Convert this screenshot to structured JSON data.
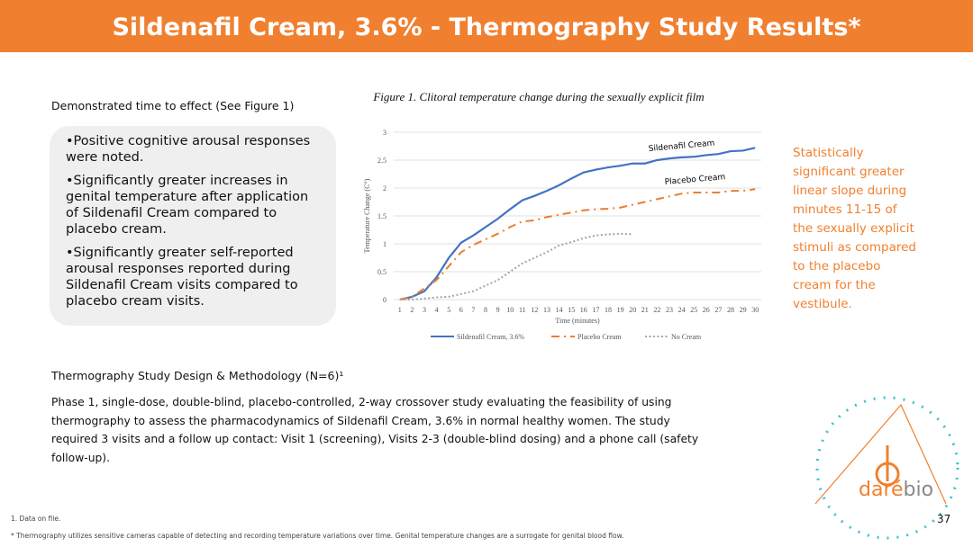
{
  "header": {
    "title": "Sildenafil Cream, 3.6% - Thermography Study Results*"
  },
  "left": {
    "intro": "Demonstrated time to effect (See Figure 1)",
    "bullets": [
      "•Positive cognitive arousal responses were noted.",
      "•Significantly greater increases in genital temperature after application of Sildenafil Cream compared to placebo cream.",
      "•Significantly greater self-reported arousal responses reported during Sildenafil Cream visits compared to placebo cream visits."
    ]
  },
  "chart_data": {
    "type": "line",
    "title": "Figure 1. Clitoral temperature change during the sexually explicit film",
    "y_label": "Temperature Change (C°)",
    "x_label": "Time (minutes)",
    "categories": [
      "1",
      "2",
      "3",
      "4",
      "5",
      "6",
      "7",
      "8",
      "9",
      "10",
      "11",
      "12",
      "13",
      "14",
      "15",
      "16",
      "17",
      "18",
      "19",
      "20",
      "21",
      "22",
      "23",
      "24",
      "25",
      "26",
      "27",
      "28",
      "29",
      "30"
    ],
    "ylim": [
      0,
      3
    ],
    "yticks": [
      0,
      0.5,
      1,
      1.5,
      2,
      2.5,
      3
    ],
    "legend": "bottom",
    "annotations": [
      "Sildenafil Cream",
      "Placebo Cream"
    ],
    "series": [
      {
        "name": "Sildenafil Cream, 3.6%",
        "color": "#4472c4",
        "style": "solid",
        "values": [
          0,
          0.05,
          0.15,
          0.4,
          0.75,
          1.02,
          1.15,
          1.3,
          1.45,
          1.62,
          1.78,
          1.86,
          1.95,
          2.05,
          2.17,
          2.28,
          2.33,
          2.37,
          2.4,
          2.44,
          2.44,
          2.5,
          2.53,
          2.55,
          2.56,
          2.59,
          2.61,
          2.66,
          2.67,
          2.72
        ]
      },
      {
        "name": "Placebo Cream",
        "color": "#ed7d31",
        "style": "dashdot",
        "values": [
          0,
          0.05,
          0.2,
          0.35,
          0.6,
          0.85,
          0.98,
          1.08,
          1.18,
          1.3,
          1.4,
          1.42,
          1.48,
          1.52,
          1.56,
          1.6,
          1.62,
          1.63,
          1.65,
          1.7,
          1.75,
          1.8,
          1.85,
          1.9,
          1.92,
          1.92,
          1.92,
          1.95,
          1.95,
          1.98
        ]
      },
      {
        "name": "No Cream",
        "color": "#a5a5a5",
        "style": "dotted",
        "values": [
          0,
          0,
          0.02,
          0.04,
          0.05,
          0.1,
          0.15,
          0.25,
          0.35,
          0.5,
          0.65,
          0.75,
          0.85,
          0.97,
          1.03,
          1.1,
          1.15,
          1.17,
          1.18,
          1.17,
          null,
          null,
          null,
          null,
          null,
          null,
          null,
          null,
          null,
          null
        ]
      }
    ]
  },
  "right_note": "Statistically significant greater linear slope during minutes 11-15 of the sexually explicit stimuli as compared to the placebo cream for the vestibule.",
  "methodology": {
    "title": "Thermography Study Design & Methodology (N=6)¹",
    "text": "Phase 1, single-dose, double-blind, placebo-controlled, 2-way crossover study evaluating the feasibility of using thermography to assess the pharmacodynamics of Sildenafil Cream, 3.6% in normal healthy women. The study required 3 visits and a follow up contact: Visit 1 (screening), Visits 2-3 (double-blind dosing) and a phone call (safety follow-up)."
  },
  "logo": {
    "part1": "daré",
    "part2": "bio"
  },
  "footnotes": [
    "1. Data on file.",
    "* Thermography utilizes sensitive cameras capable of detecting and recording temperature variations over time. Genital temperature changes are a surrogate for genital blood flow."
  ],
  "page_number": "37"
}
